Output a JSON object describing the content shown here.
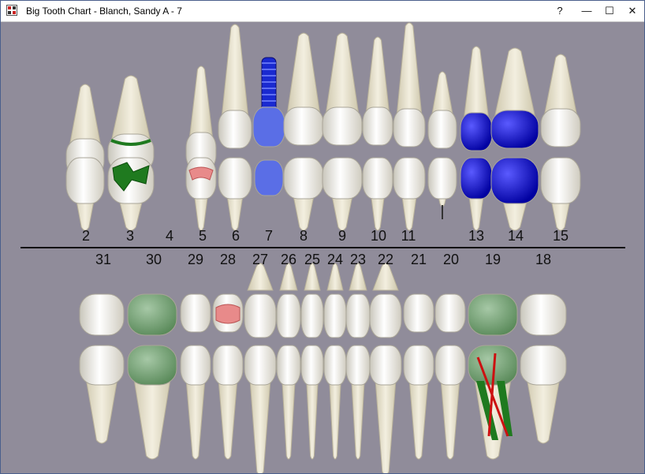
{
  "window": {
    "title": "Big Tooth Chart - Blanch, Sandy A - 7",
    "help_label": "?",
    "minimize_glyph": "—",
    "maximize_glyph": "☐",
    "close_glyph": "✕"
  },
  "upper_numbers": [
    "2",
    "3",
    "4",
    "5",
    "6",
    "7",
    "8",
    "9",
    "10",
    "11",
    "13",
    "14",
    "15"
  ],
  "lower_numbers": [
    "31",
    "30",
    "29",
    "28",
    "27",
    "26",
    "25",
    "24",
    "23",
    "22",
    "21",
    "20",
    "19",
    "18"
  ],
  "colors": {
    "background": "#908c9a",
    "tooth": "#eeebe0",
    "root": "#e2dcc6",
    "composite": "#1f7a1f",
    "crown_blue": "#1010c8",
    "implant": "#5a6ee6",
    "pink": "#e88a8a",
    "light_green": "#7aa87a",
    "rct_red": "#cc1111"
  }
}
